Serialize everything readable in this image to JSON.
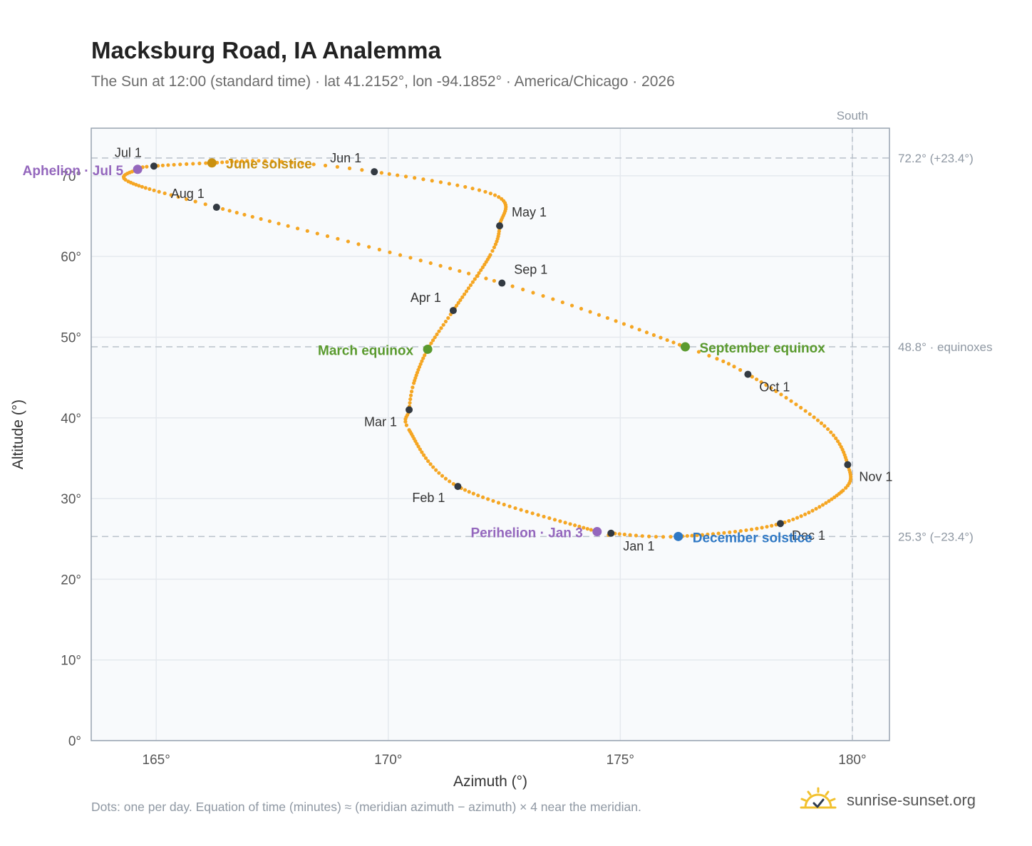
{
  "header": {
    "title": "Macksburg Road, IA Analemma",
    "subtitle": "The Sun at 12:00 (standard time) · lat 41.2152°, lon -94.1852° · America/Chicago · 2026"
  },
  "footer": {
    "note": "Dots: one per day. Equation of time (minutes) ≈ (meridian azimuth − azimuth) × 4 near the meridian.",
    "brand": "sunrise-sunset.org"
  },
  "colors": {
    "path": "#f5a623",
    "month_marker": "#333a42",
    "solstice_june": "#c9900f",
    "solstice_december": "#2f78c4",
    "equinox": "#5a9a2e",
    "apsis": "#9467bd",
    "grid": "#e5e9ee",
    "plot_bg": "#f8fafc",
    "reference_line": "#b9c1ca"
  },
  "chart_data": {
    "type": "scatter",
    "xlabel": "Azimuth (°)",
    "ylabel": "Altitude (°)",
    "xlim": [
      163.6,
      180.8
    ],
    "ylim": [
      0,
      75.9
    ],
    "x_ticks": [
      {
        "value": 165,
        "label": "165°"
      },
      {
        "value": 170,
        "label": "170°"
      },
      {
        "value": 175,
        "label": "175°"
      },
      {
        "value": 180,
        "label": "180°"
      }
    ],
    "y_ticks": [
      {
        "value": 0,
        "label": "0°"
      },
      {
        "value": 10,
        "label": "10°"
      },
      {
        "value": 20,
        "label": "20°"
      },
      {
        "value": 30,
        "label": "30°"
      },
      {
        "value": 40,
        "label": "40°"
      },
      {
        "value": 50,
        "label": "50°"
      },
      {
        "value": 60,
        "label": "60°"
      },
      {
        "value": 70,
        "label": "70°"
      }
    ],
    "grid": true,
    "meridian": {
      "azimuth": 180,
      "label": "South"
    },
    "reference_lines": [
      {
        "altitude": 72.2,
        "label": "72.2° (+23.4°)"
      },
      {
        "altitude": 48.8,
        "label": "48.8° · equinoxes"
      },
      {
        "altitude": 25.3,
        "label": "25.3° (−23.4°)"
      }
    ],
    "month_markers": [
      {
        "label": "Jan 1",
        "azimuth": 174.8,
        "altitude": 25.7
      },
      {
        "label": "Feb 1",
        "azimuth": 171.5,
        "altitude": 31.5
      },
      {
        "label": "Mar 1",
        "azimuth": 170.45,
        "altitude": 41.0
      },
      {
        "label": "Apr 1",
        "azimuth": 171.4,
        "altitude": 53.3
      },
      {
        "label": "May 1",
        "azimuth": 172.4,
        "altitude": 63.8
      },
      {
        "label": "Jun 1",
        "azimuth": 169.7,
        "altitude": 70.5
      },
      {
        "label": "Jul 1",
        "azimuth": 164.95,
        "altitude": 71.2
      },
      {
        "label": "Aug 1",
        "azimuth": 166.3,
        "altitude": 66.1
      },
      {
        "label": "Sep 1",
        "azimuth": 172.45,
        "altitude": 56.7
      },
      {
        "label": "Oct 1",
        "azimuth": 177.75,
        "altitude": 45.4
      },
      {
        "label": "Nov 1",
        "azimuth": 179.9,
        "altitude": 34.2
      },
      {
        "label": "Dec 1",
        "azimuth": 178.45,
        "altitude": 26.9
      }
    ],
    "events": [
      {
        "label": "June solstice",
        "azimuth": 166.2,
        "altitude": 71.6,
        "kind": "solstice_june"
      },
      {
        "label": "December solstice",
        "azimuth": 176.25,
        "altitude": 25.3,
        "kind": "solstice_december"
      },
      {
        "label": "March equinox",
        "azimuth": 170.85,
        "altitude": 48.5,
        "kind": "equinox"
      },
      {
        "label": "September equinox",
        "azimuth": 176.4,
        "altitude": 48.8,
        "kind": "equinox"
      },
      {
        "label": "Perihelion · Jan 3",
        "azimuth": 174.5,
        "altitude": 25.9,
        "kind": "apsis"
      },
      {
        "label": "Aphelion · Jul 5",
        "azimuth": 164.6,
        "altitude": 70.8,
        "kind": "apsis"
      }
    ]
  }
}
